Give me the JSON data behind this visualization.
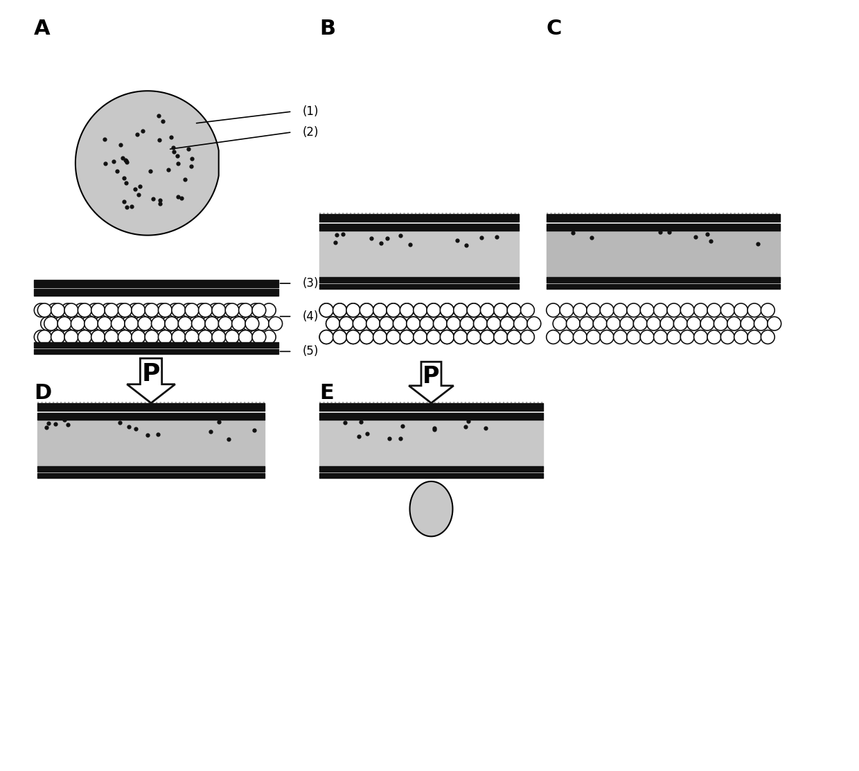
{
  "bg_color": "#ffffff",
  "label_color": "#000000",
  "panel_labels": [
    "A",
    "B",
    "C",
    "D",
    "E"
  ],
  "panel_label_fontsize": 22,
  "annotation_labels": [
    "(1)",
    "(2)",
    "(3)",
    "(4)",
    "(5)"
  ],
  "drop_fill": "#c8c8c8",
  "drop_edge": "#000000",
  "membrane_black": "#111111",
  "membrane_gray": "#aaaaaa",
  "bead_fill": "#ffffff",
  "bead_edge": "#111111",
  "dot_color": "#111111",
  "arrow_fill": "#ffffff",
  "arrow_edge": "#111111",
  "pressure_label": "P",
  "pressure_fontsize": 28
}
